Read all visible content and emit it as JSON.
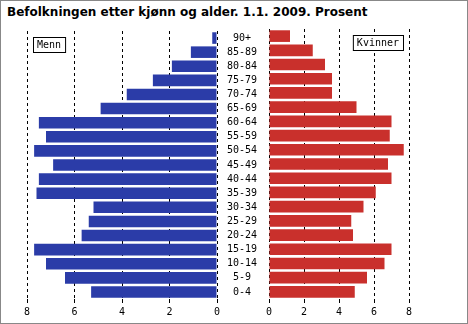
{
  "chart_data": {
    "type": "bar",
    "title": "Befolkningen etter kjønn og alder. 1.1. 2009. Prosent",
    "orientation": "horizontal",
    "categories": [
      "90+",
      "85-89",
      "80-84",
      "75-79",
      "70-74",
      "65-69",
      "60-64",
      "55-59",
      "50-54",
      "45-49",
      "40-44",
      "35-39",
      "30-34",
      "25-29",
      "20-24",
      "15-19",
      "10-14",
      "5-9",
      "0-4"
    ],
    "series": [
      {
        "name": "Menn",
        "color": "#2b3ca8",
        "values": [
          0.2,
          1.1,
          1.9,
          2.7,
          3.8,
          4.9,
          7.5,
          7.2,
          7.7,
          6.9,
          7.5,
          7.6,
          5.2,
          5.4,
          5.7,
          7.7,
          7.2,
          6.4,
          5.3
        ]
      },
      {
        "name": "Kvinner",
        "color": "#c9302c",
        "values": [
          1.2,
          2.5,
          3.2,
          3.6,
          3.6,
          5.0,
          7.0,
          6.9,
          7.7,
          6.8,
          7.0,
          6.1,
          5.4,
          4.7,
          4.8,
          7.0,
          6.6,
          5.6,
          4.9
        ]
      }
    ],
    "xlim": [
      0,
      8
    ],
    "xticks": [
      0,
      2,
      4,
      6,
      8
    ],
    "grid": true,
    "legend": "top"
  }
}
